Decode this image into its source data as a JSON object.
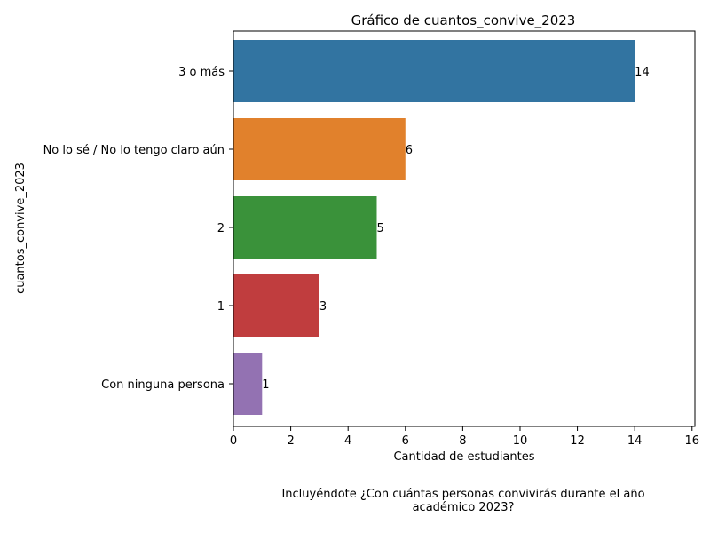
{
  "chart_data": {
    "type": "bar",
    "orientation": "horizontal",
    "title": "Gráfico de cuantos_convive_2023",
    "xlabel": "Cantidad de estudiantes",
    "ylabel": "cuantos_convive_2023",
    "caption_lines": [
      "Incluyéndote ¿Con cuántas personas convivirás durante el año",
      "académico 2023?"
    ],
    "categories": [
      "3 o más",
      "No lo sé / No lo tengo claro aún",
      "2",
      "1",
      "Con ninguna persona"
    ],
    "values": [
      14,
      6,
      5,
      3,
      1
    ],
    "data_labels": [
      "14",
      "6",
      "5",
      "3",
      "1"
    ],
    "colors": [
      "#3274a1",
      "#e1812c",
      "#3a923a",
      "#c03d3e",
      "#9372b2"
    ],
    "xlim": [
      0,
      16.1
    ],
    "xticks": [
      0,
      2,
      4,
      6,
      8,
      10,
      12,
      14,
      16
    ],
    "grid": false,
    "legend": "none"
  }
}
